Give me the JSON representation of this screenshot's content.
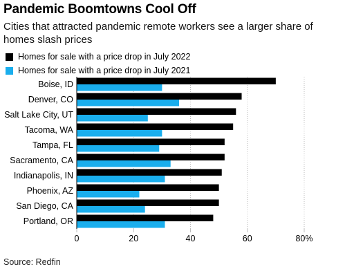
{
  "title": "Pandemic Boomtowns Cool Off",
  "subtitle": "Cities that attracted pandemic remote workers see a larger share of homes slash prices",
  "source": "Source: Redfin",
  "colors": {
    "series_2022": "#000000",
    "series_2021": "#1aaeed",
    "grid": "#bdbdbd",
    "axis": "#000000"
  },
  "chart_data": {
    "type": "bar",
    "orientation": "horizontal",
    "title": "Pandemic Boomtowns Cool Off",
    "subtitle": "Cities that attracted pandemic remote workers see a larger share of homes slash prices",
    "categories": [
      "Boise, ID",
      "Denver, CO",
      "Salt Lake City, UT",
      "Tacoma, WA",
      "Tampa, FL",
      "Sacramento, CA",
      "Indianapolis, IN",
      "Phoenix, AZ",
      "San Diego, CA",
      "Portland, OR"
    ],
    "series": [
      {
        "name": "Homes for sale with a price drop in July 2022",
        "values": [
          70,
          58,
          56,
          55,
          52,
          52,
          51,
          50,
          50,
          48
        ]
      },
      {
        "name": "Homes for sale with a price drop in July 2021",
        "values": [
          30,
          36,
          25,
          30,
          29,
          33,
          31,
          22,
          24,
          31
        ]
      }
    ],
    "xlim": [
      0,
      80
    ],
    "xticks": [
      "0",
      "20",
      "40",
      "60",
      "80%"
    ],
    "xtick_values": [
      0,
      20,
      40,
      60,
      80
    ],
    "grid": true,
    "legend_position": "top-left"
  }
}
